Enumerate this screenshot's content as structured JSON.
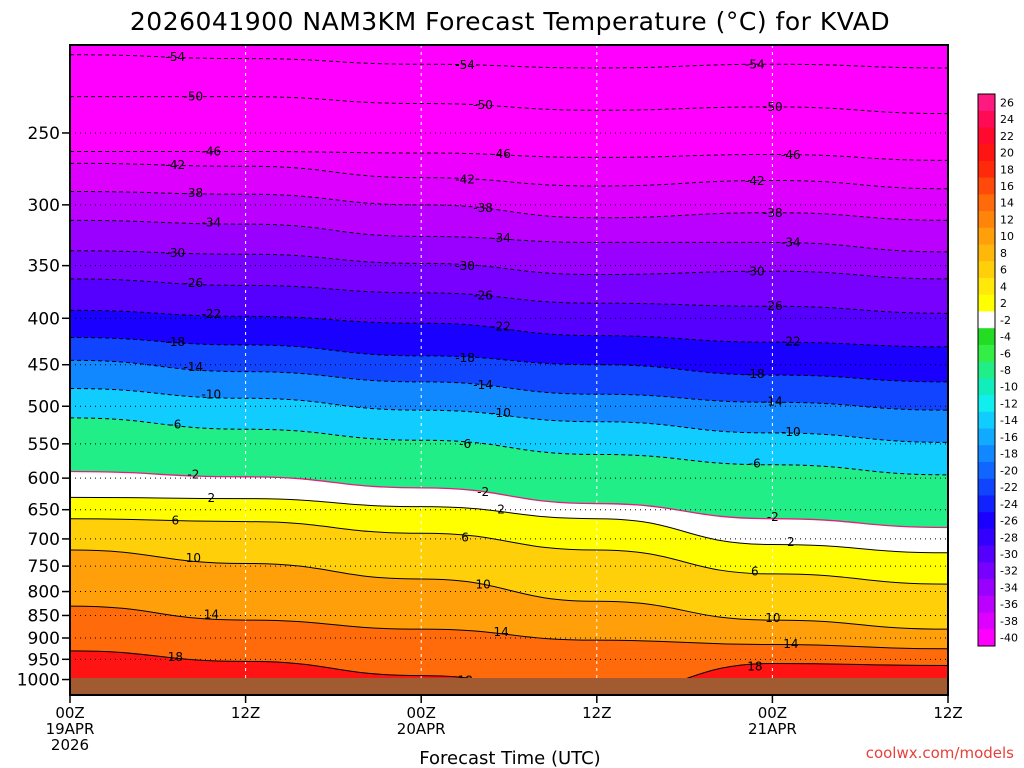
{
  "chart_data": {
    "type": "heatmap",
    "title": "2026041900 NAM3KM Forecast Temperature (°C) for KVAD",
    "xlabel": "Forecast Time (UTC)",
    "ylabel": "",
    "credit": "coolwx.com/models",
    "x_ticks": [
      {
        "hour": 0,
        "line1": "00Z",
        "line2": "19APR",
        "line3": "2026"
      },
      {
        "hour": 12,
        "line1": "12Z",
        "line2": "",
        "line3": ""
      },
      {
        "hour": 24,
        "line1": "00Z",
        "line2": "20APR",
        "line3": ""
      },
      {
        "hour": 36,
        "line1": "12Z",
        "line2": "",
        "line3": ""
      },
      {
        "hour": 48,
        "line1": "00Z",
        "line2": "21APR",
        "line3": ""
      },
      {
        "hour": 60,
        "line1": "12Z",
        "line2": "",
        "line3": ""
      }
    ],
    "xlim": [
      0,
      60
    ],
    "pressure_ticks": [
      "250",
      "300",
      "350",
      "400",
      "450",
      "500",
      "550",
      "600",
      "650",
      "700",
      "750",
      "800",
      "850",
      "900",
      "950",
      "1000"
    ],
    "ylim": [
      200,
      1040
    ],
    "colorbar": {
      "labels": [
        "26",
        "24",
        "22",
        "20",
        "18",
        "16",
        "14",
        "12",
        "10",
        "8",
        "6",
        "4",
        "2",
        "-2",
        "-4",
        "-6",
        "-8",
        "-10",
        "-12",
        "-14",
        "-16",
        "-18",
        "-20",
        "-22",
        "-24",
        "-26",
        "-28",
        "-30",
        "-32",
        "-34",
        "-36",
        "-38",
        "-40"
      ],
      "colors": [
        "#ff1a82",
        "#ff0a55",
        "#ff0a2e",
        "#ff1414",
        "#ff2a0a",
        "#ff4a0a",
        "#ff6a0a",
        "#ff850a",
        "#ff9f0a",
        "#ffb80a",
        "#ffd00a",
        "#ffe80a",
        "#ffff00",
        "#ffffff",
        "#22dd22",
        "#33ee44",
        "#22ee88",
        "#11eebb",
        "#11eeee",
        "#11ccff",
        "#11aaff",
        "#1188ff",
        "#1166ff",
        "#1144ff",
        "#1122ff",
        "#1a00ff",
        "#3300ff",
        "#5500ff",
        "#7700ff",
        "#9900ff",
        "#bb00ff",
        "#dd00ff",
        "#ff00ff"
      ]
    },
    "isotherms": [
      {
        "label": "-54",
        "p": [
          205,
          207,
          210,
          212,
          210,
          212
        ]
      },
      {
        "label": "-50",
        "p": [
          228,
          228,
          232,
          236,
          234,
          238
        ]
      },
      {
        "label": "-46",
        "p": [
          262,
          262,
          263,
          266,
          264,
          268
        ]
      },
      {
        "label": "-42",
        "p": [
          270,
          272,
          280,
          286,
          282,
          288
        ]
      },
      {
        "label": "-38",
        "p": [
          290,
          292,
          300,
          310,
          306,
          312
        ]
      },
      {
        "label": "-34",
        "p": [
          312,
          315,
          325,
          330,
          330,
          338
        ]
      },
      {
        "label": "-30",
        "p": [
          337,
          340,
          348,
          358,
          355,
          362
        ]
      },
      {
        "label": "-26",
        "p": [
          362,
          368,
          375,
          385,
          388,
          395
        ]
      },
      {
        "label": "-22",
        "p": [
          392,
          398,
          405,
          418,
          425,
          430
        ]
      },
      {
        "label": "-18",
        "p": [
          420,
          428,
          440,
          450,
          462,
          470
        ]
      },
      {
        "label": "-14",
        "p": [
          445,
          458,
          470,
          485,
          495,
          505
        ]
      },
      {
        "label": "-10",
        "p": [
          478,
          490,
          505,
          520,
          535,
          548
        ]
      },
      {
        "label": "-6",
        "p": [
          515,
          530,
          545,
          565,
          580,
          595
        ]
      },
      {
        "label": "-2",
        "p": [
          590,
          598,
          615,
          640,
          665,
          680
        ]
      },
      {
        "label": "2",
        "p": [
          630,
          632,
          645,
          665,
          710,
          725
        ]
      },
      {
        "label": "6",
        "p": [
          665,
          670,
          690,
          720,
          765,
          785
        ]
      },
      {
        "label": "10",
        "p": [
          720,
          745,
          775,
          820,
          860,
          880
        ]
      },
      {
        "label": "14",
        "p": [
          830,
          860,
          880,
          905,
          915,
          925
        ]
      },
      {
        "label": "18",
        "p": [
          930,
          955,
          990,
          1040,
          960,
          965
        ]
      }
    ]
  }
}
